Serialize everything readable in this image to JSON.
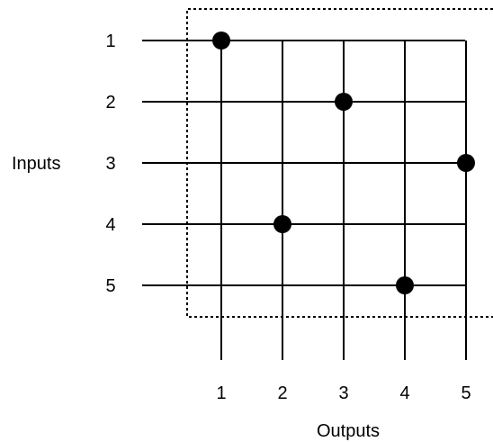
{
  "inputs_label": "Inputs",
  "outputs_label": "Outputs",
  "inputs": [
    {
      "label": "1"
    },
    {
      "label": "2"
    },
    {
      "label": "3"
    },
    {
      "label": "4"
    },
    {
      "label": "5"
    }
  ],
  "outputs": [
    {
      "label": "1"
    },
    {
      "label": "2"
    },
    {
      "label": "3"
    },
    {
      "label": "4"
    },
    {
      "label": "5"
    }
  ],
  "connections": [
    {
      "input": "1",
      "output": "1"
    },
    {
      "input": "2",
      "output": "3"
    },
    {
      "input": "3",
      "output": "5"
    },
    {
      "input": "4",
      "output": "2"
    },
    {
      "input": "5",
      "output": "4"
    }
  ],
  "colors": {
    "line": "#000000",
    "dot": "#000000",
    "background": "#ffffff"
  }
}
